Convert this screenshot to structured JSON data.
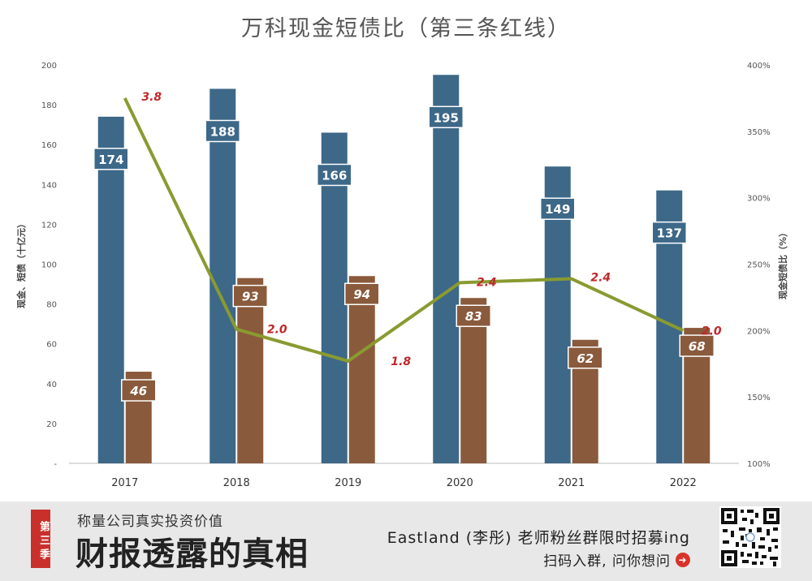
{
  "chart_data": {
    "type": "bar",
    "title": "万科现金短债比（第三条红线）",
    "categories": [
      "2017",
      "2018",
      "2019",
      "2020",
      "2021",
      "2022"
    ],
    "series": [
      {
        "name": "现金",
        "type": "bar",
        "axis": "left",
        "color": "#3d6888",
        "values": [
          174,
          188,
          166,
          195,
          149,
          137
        ]
      },
      {
        "name": "短债",
        "type": "bar",
        "axis": "left",
        "color": "#8a5a3c",
        "values": [
          46,
          93,
          94,
          83,
          62,
          68
        ]
      },
      {
        "name": "现金短债比",
        "type": "line",
        "axis": "right",
        "color": "#8a9a30",
        "values": [
          3.8,
          2.0,
          1.8,
          2.4,
          2.4,
          2.0
        ],
        "plotted_percent": [
          375,
          201,
          177,
          236,
          239,
          200
        ]
      }
    ],
    "ylabel": "现金、短债（十亿元）",
    "y2label": "现金短债比（%）",
    "ylim": [
      0,
      200
    ],
    "y2lim": [
      100,
      400
    ],
    "yticks": [
      "-",
      "20",
      "40",
      "60",
      "80",
      "100",
      "120",
      "140",
      "160",
      "180",
      "200"
    ],
    "y2ticks": [
      "100%",
      "150%",
      "200%",
      "250%",
      "300%",
      "350%",
      "400%"
    ],
    "grid": false,
    "legend": "none"
  },
  "footer": {
    "badge": "第三季",
    "tagline": "称量公司真实投资价值",
    "brand": "财报透露的真相",
    "promo": "Eastland (李彤) 老师粉丝群限时招募ing",
    "action": "扫码入群, 问你想问",
    "arrow_icon": "arrow-right-circle-icon",
    "qr_icon": "qr-code-icon"
  }
}
